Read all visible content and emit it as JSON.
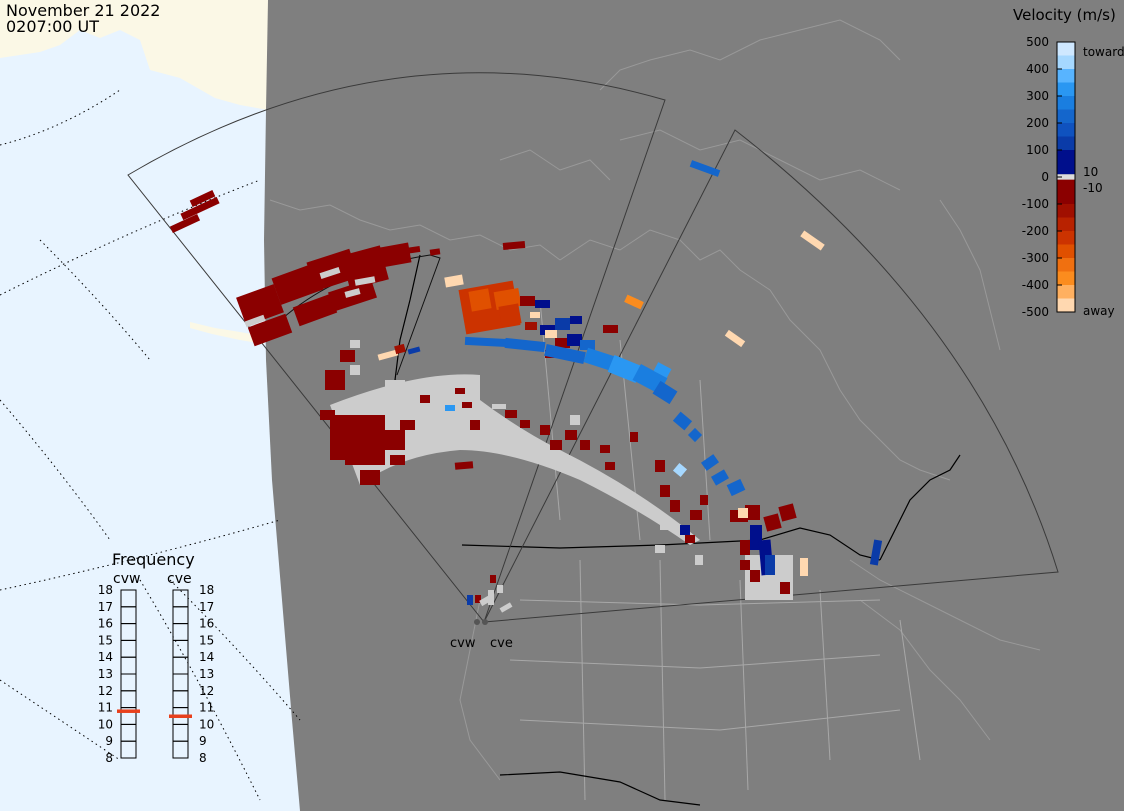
{
  "header": {
    "date": "November 21 2022",
    "time": "0207:00 UT"
  },
  "colors": {
    "ocean": "#e8f4ff",
    "night": "#7f7f7f",
    "land_day": "#fbf8e6",
    "border": "#000000",
    "ground_scatter": "#cccccc"
  },
  "colorbar": {
    "title": "Velocity (m/s)",
    "ticks": [
      "500",
      "400",
      "300",
      "200",
      "100",
      "0",
      "-100",
      "-200",
      "-300",
      "-400",
      "-500"
    ],
    "label_toward": "toward",
    "label_away": "away",
    "label_pos_threshold": "10",
    "label_neg_threshold": "-10",
    "scale": [
      {
        "min": 450,
        "max": 500,
        "color": "#cfe8ff"
      },
      {
        "min": 400,
        "max": 450,
        "color": "#a6d8ff"
      },
      {
        "min": 350,
        "max": 400,
        "color": "#58b4ff"
      },
      {
        "min": 300,
        "max": 350,
        "color": "#2a97f2"
      },
      {
        "min": 250,
        "max": 300,
        "color": "#1a7ee0"
      },
      {
        "min": 200,
        "max": 250,
        "color": "#1466cc"
      },
      {
        "min": 150,
        "max": 200,
        "color": "#0f52bf"
      },
      {
        "min": 100,
        "max": 150,
        "color": "#0a3ba8"
      },
      {
        "min": 10,
        "max": 100,
        "color": "#000f8c"
      },
      {
        "min": -10,
        "max": 10,
        "color": "#dddddd"
      },
      {
        "min": -100,
        "max": -10,
        "color": "#8b0000"
      },
      {
        "min": -150,
        "max": -100,
        "color": "#a00f00"
      },
      {
        "min": -200,
        "max": -150,
        "color": "#b82200"
      },
      {
        "min": -250,
        "max": -200,
        "color": "#cc3300"
      },
      {
        "min": -300,
        "max": -250,
        "color": "#e05000"
      },
      {
        "min": -350,
        "max": -300,
        "color": "#f07010"
      },
      {
        "min": -400,
        "max": -350,
        "color": "#fb8c1e"
      },
      {
        "min": -450,
        "max": -400,
        "color": "#ffb060"
      },
      {
        "min": -500,
        "max": -450,
        "color": "#ffd8b0"
      }
    ]
  },
  "frequency": {
    "title": "Frequency",
    "scale": [
      "18",
      "17",
      "16",
      "15",
      "14",
      "13",
      "12",
      "11",
      "10",
      "9",
      "8"
    ],
    "radars": [
      {
        "name": "cvw",
        "freq_mhz": 10.8
      },
      {
        "name": "cve",
        "freq_mhz": 10.5
      }
    ]
  },
  "map": {
    "radar_labels": [
      "cvw",
      "cve"
    ]
  }
}
